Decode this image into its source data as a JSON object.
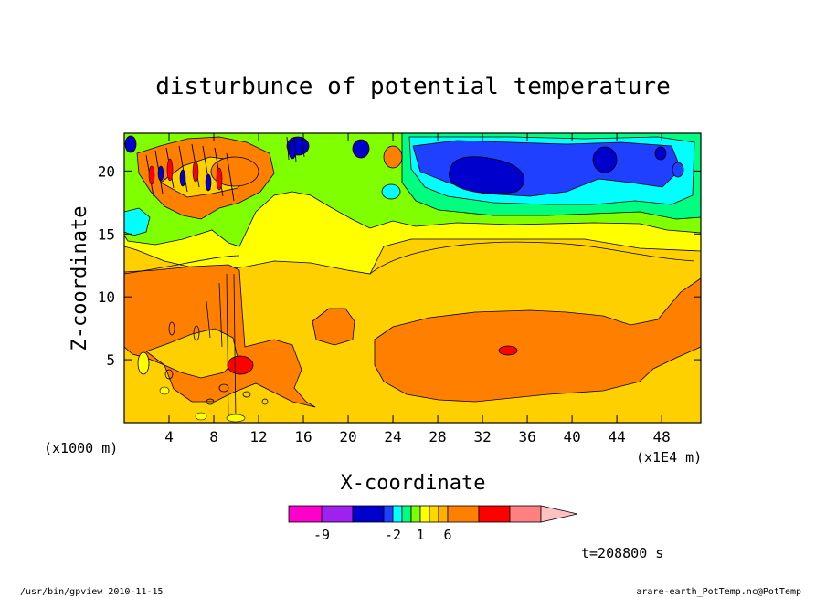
{
  "chart_data": {
    "type": "heatmap",
    "title": "disturbunce of potential temperature",
    "xlabel": "X-coordinate",
    "ylabel": "Z-coordinate",
    "x_unit_label": "(x1E4 m)",
    "y_unit_label": "(x1000 m)",
    "xlim": [
      0,
      51.5
    ],
    "ylim": [
      0,
      23
    ],
    "x_ticks": [
      4,
      8,
      12,
      16,
      20,
      24,
      28,
      32,
      36,
      40,
      44,
      48
    ],
    "y_ticks": [
      5,
      10,
      15,
      20
    ],
    "time_label": "t=208800 s",
    "colorbar": {
      "tick_labels": [
        "-9",
        "-2",
        "1",
        "6"
      ],
      "tick_levels": [
        -9,
        -2,
        1,
        6
      ],
      "levels": [
        -12,
        -9,
        -6,
        -3,
        -2,
        -1,
        0,
        1,
        2,
        3,
        6,
        9,
        12,
        15
      ],
      "colors": [
        "#ff00cc",
        "#a020f0",
        "#0000cd",
        "#2040ff",
        "#00ffff",
        "#00ff80",
        "#80ff00",
        "#ffff00",
        "#ffd700",
        "#ffb000",
        "#ff8000",
        "#ff0000",
        "#ff8080",
        "#ffc0c0"
      ]
    },
    "regions": [
      {
        "level": 3,
        "desc": "background",
        "color": "#ffd000"
      },
      {
        "level": 1,
        "color": "#ffff00"
      },
      {
        "level": 0,
        "color": "#80ff00"
      },
      {
        "level": -1,
        "color": "#00ff80"
      },
      {
        "level": -2,
        "color": "#00ffff"
      },
      {
        "level": -3,
        "color": "#2040ff"
      },
      {
        "level": -6,
        "color": "#0000cd"
      },
      {
        "level": 6,
        "color": "#ff8000"
      },
      {
        "level": 9,
        "color": "#ff0000"
      }
    ]
  },
  "footer": {
    "left": "/usr/bin/gpview   2010-11-15",
    "right": "arare-earth_PotTemp.nc@PotTemp"
  }
}
